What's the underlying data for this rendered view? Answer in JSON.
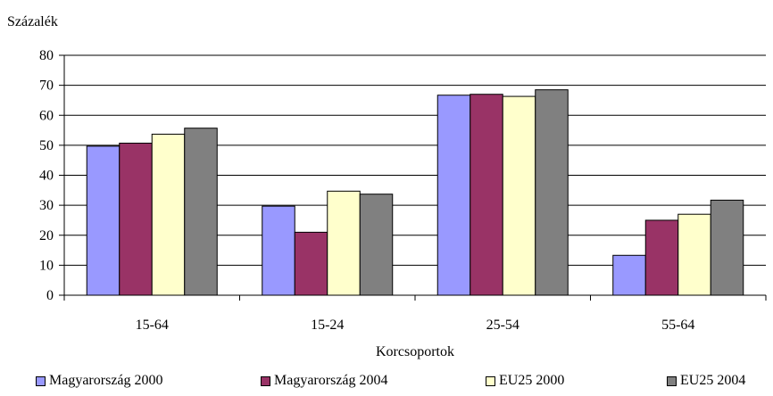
{
  "chart_data": {
    "type": "bar",
    "title": "",
    "ylabel": "Százalék",
    "xlabel": "Korcsoportok",
    "categories": [
      "15-64",
      "15-24",
      "25-54",
      "55-64"
    ],
    "ylim": [
      0,
      80
    ],
    "yticks": [
      0,
      10,
      20,
      30,
      40,
      50,
      60,
      70,
      80
    ],
    "grid": true,
    "legend_position": "bottom",
    "series": [
      {
        "name": "Magyarország 2000",
        "color": "#9999FF",
        "values": [
          49.7,
          29.7,
          66.7,
          13.3
        ]
      },
      {
        "name": "Magyarország 2004",
        "color": "#993366",
        "values": [
          50.7,
          21.0,
          67.0,
          25.0
        ]
      },
      {
        "name": "EU25 2000",
        "color": "#FFFFCC",
        "values": [
          53.7,
          34.7,
          66.3,
          27.0
        ]
      },
      {
        "name": "EU25 2004",
        "color": "#808080",
        "values": [
          55.7,
          33.7,
          68.5,
          31.7
        ]
      }
    ]
  }
}
